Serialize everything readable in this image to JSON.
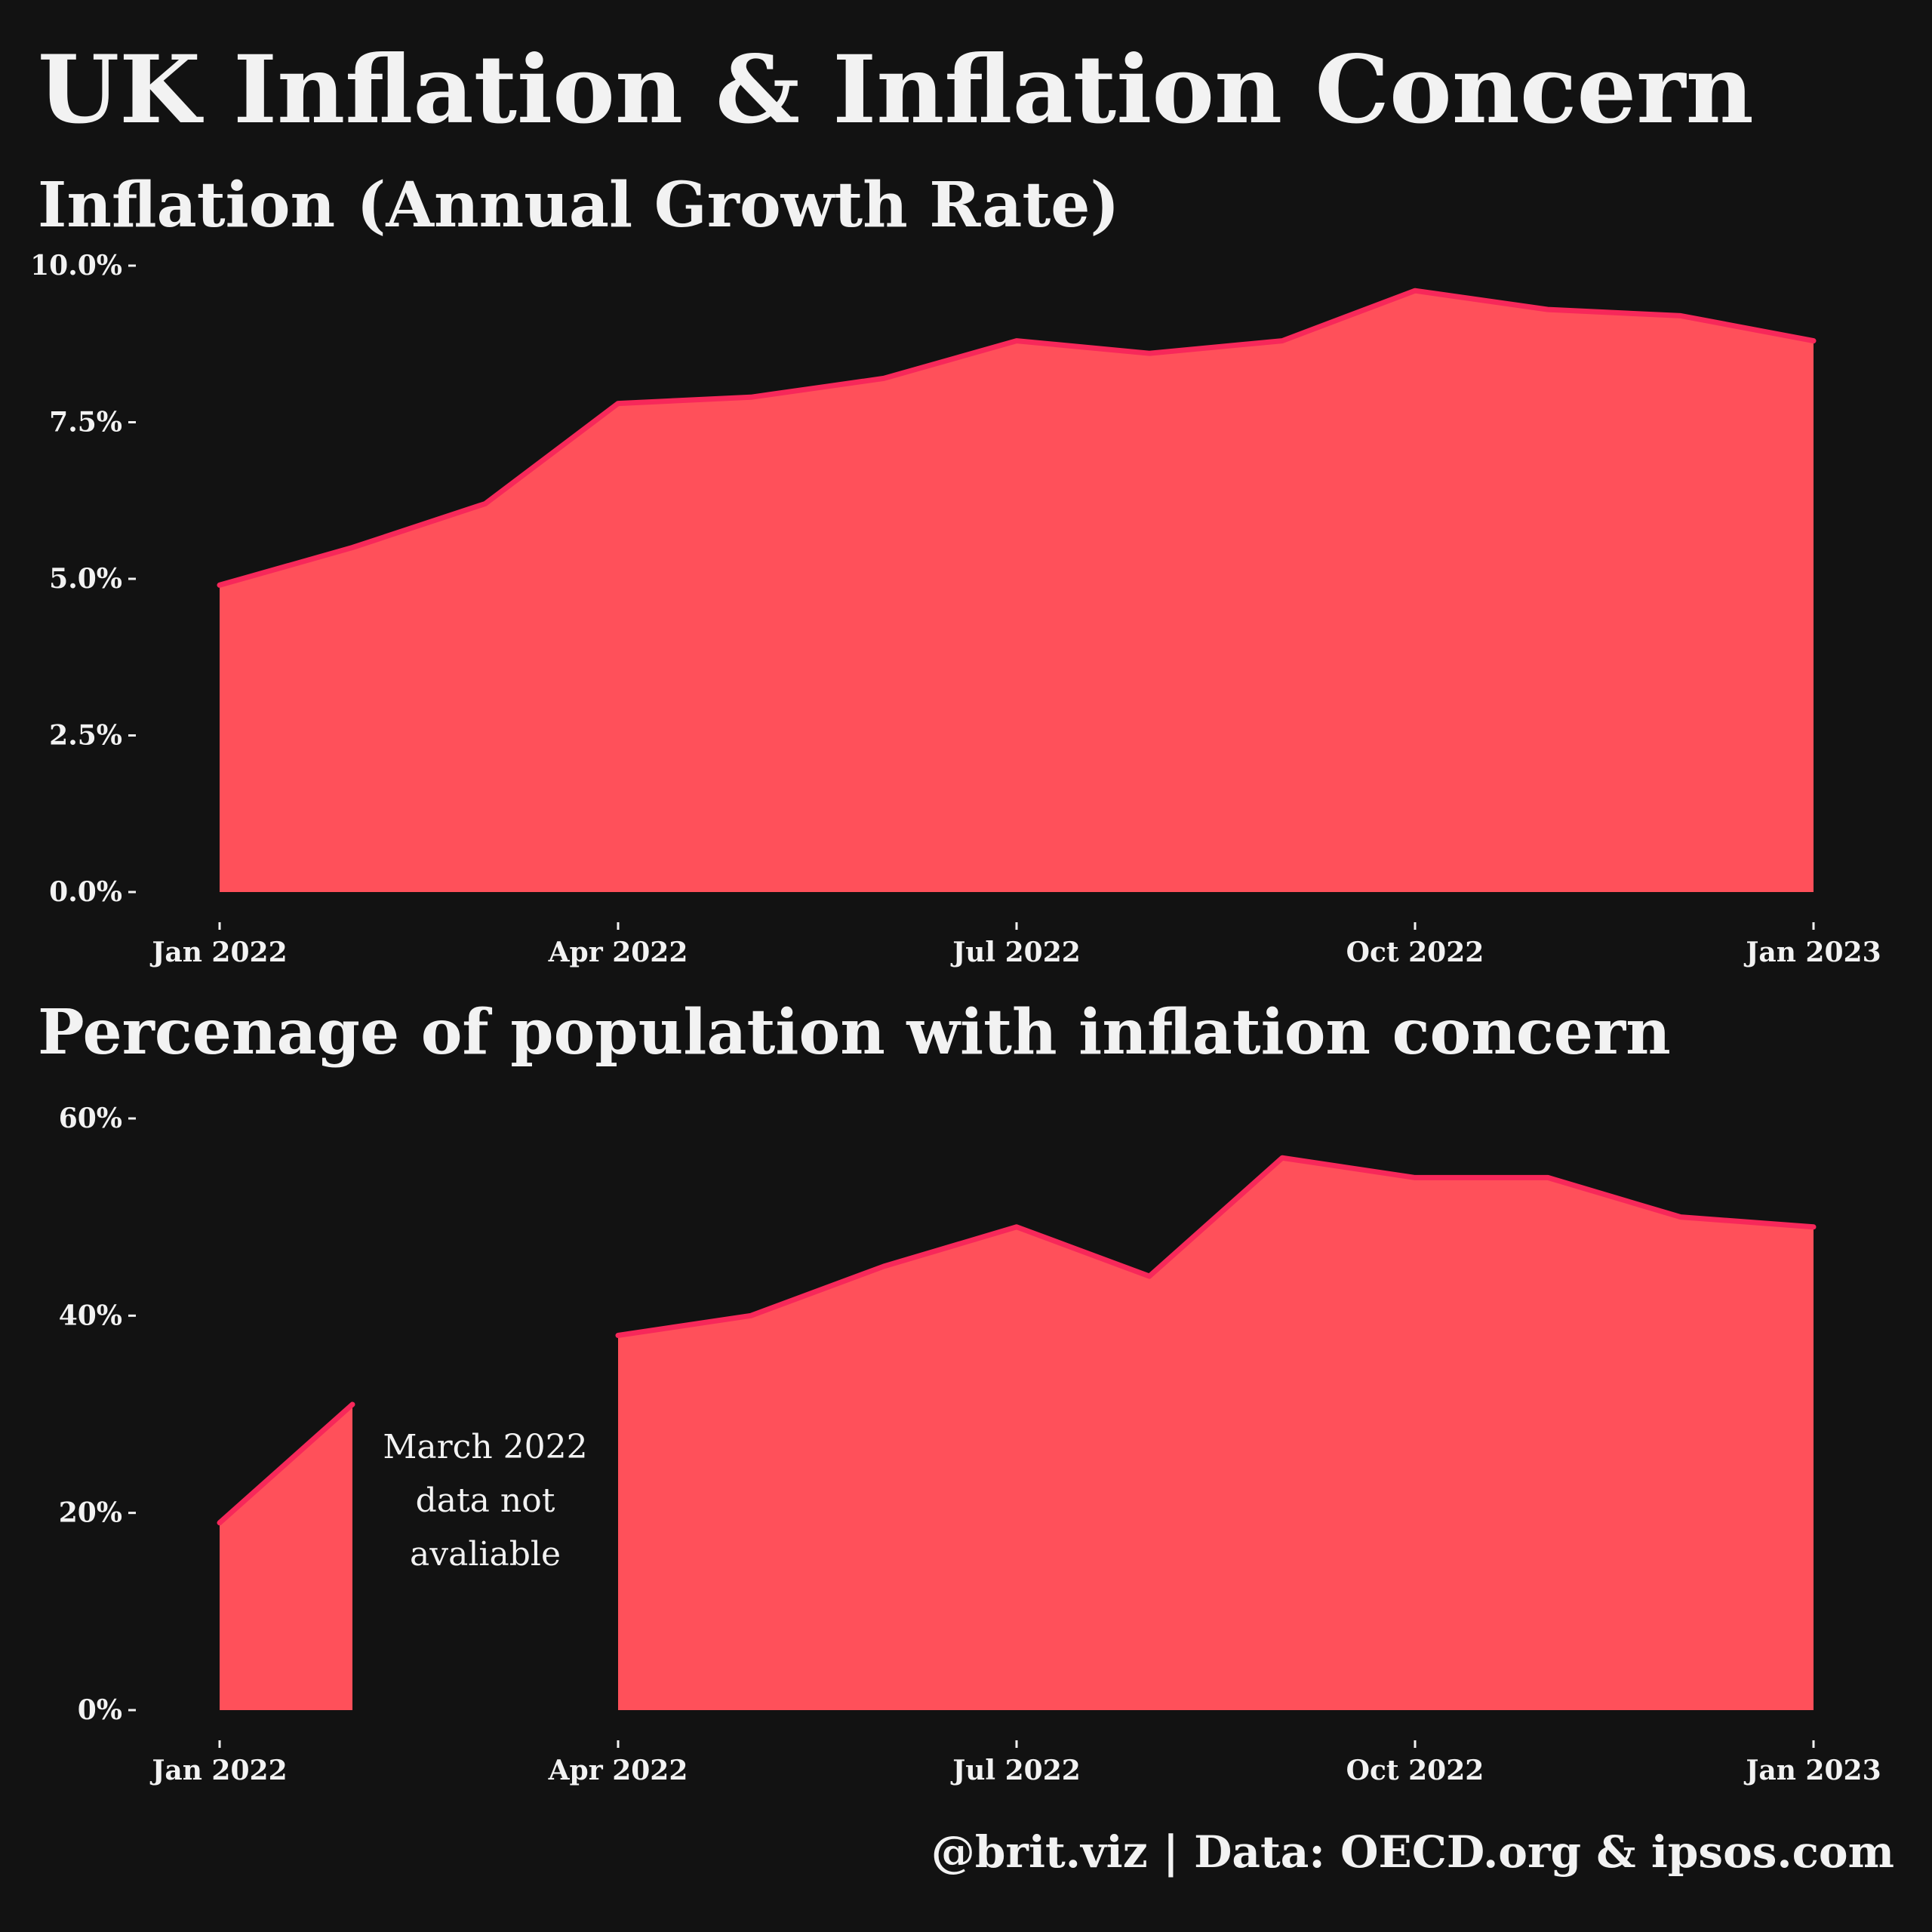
{
  "title": "UK Inflation & Inflation Concern",
  "caption": "@brit.viz | Data: OECD.org & ipsos.com",
  "colors": {
    "background": "#121212",
    "fill": "#FF505A",
    "line": "#F7285A",
    "text": "#F2F2F2"
  },
  "chart_data": [
    {
      "type": "area",
      "title": "Inflation (Annual Growth Rate)",
      "xlabel": "",
      "ylabel": "",
      "x": [
        "2022-01",
        "2022-02",
        "2022-03",
        "2022-04",
        "2022-05",
        "2022-06",
        "2022-07",
        "2022-08",
        "2022-09",
        "2022-10",
        "2022-11",
        "2022-12",
        "2023-01"
      ],
      "x_tick_labels": [
        "Jan 2022",
        "Apr 2022",
        "Jul 2022",
        "Oct 2022",
        "Jan 2023"
      ],
      "y_tick_labels": [
        "0.0%",
        "2.5%",
        "5.0%",
        "7.5%",
        "10.0%"
      ],
      "ylim": [
        0,
        10
      ],
      "grid": false,
      "series": [
        {
          "values": [
            4.9,
            5.5,
            6.2,
            7.8,
            7.9,
            8.2,
            8.8,
            8.6,
            8.8,
            9.6,
            9.3,
            9.2,
            8.8
          ]
        }
      ]
    },
    {
      "type": "area",
      "title": "Percenage of population with inflation concern",
      "xlabel": "",
      "ylabel": "",
      "x": [
        "2022-01",
        "2022-02",
        "2022-03",
        "2022-04",
        "2022-05",
        "2022-06",
        "2022-07",
        "2022-08",
        "2022-09",
        "2022-10",
        "2022-11",
        "2022-12",
        "2023-01"
      ],
      "x_tick_labels": [
        "Jan 2022",
        "Apr 2022",
        "Jul 2022",
        "Oct 2022",
        "Jan 2023"
      ],
      "y_tick_labels": [
        "0%",
        "20%",
        "40%",
        "60%"
      ],
      "ylim": [
        0,
        60
      ],
      "grid": false,
      "series": [
        {
          "values": [
            19,
            31,
            null,
            38,
            40,
            45,
            49,
            44,
            56,
            54,
            54,
            50,
            49
          ]
        }
      ],
      "annotations": [
        {
          "lines": [
            "March 2022",
            "data not",
            "avaliable"
          ],
          "x": "2022-03"
        }
      ]
    }
  ]
}
